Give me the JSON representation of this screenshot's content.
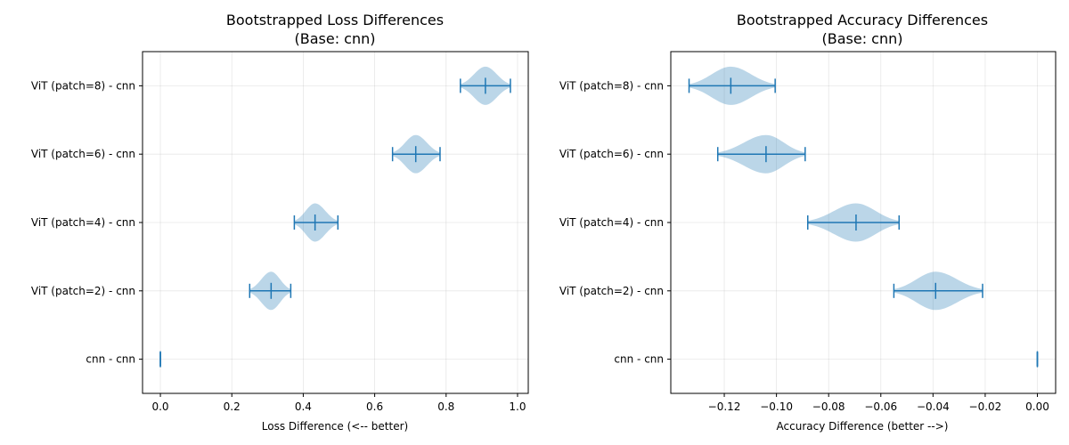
{
  "chart_data": [
    {
      "type": "violin",
      "title": "Bootstrapped Loss Differences",
      "subtitle": "(Base: cnn)",
      "xlabel": "Loss Difference (<-- better)",
      "ylabel": "",
      "xlim": [
        -0.05,
        1.03
      ],
      "xticks": [
        0.0,
        0.2,
        0.4,
        0.6,
        0.8,
        1.0
      ],
      "xtick_labels": [
        "0.0",
        "0.2",
        "0.4",
        "0.6",
        "0.8",
        "1.0"
      ],
      "grid": true,
      "color": "#1f77b4",
      "categories": [
        "cnn - cnn",
        "ViT (patch=2) - cnn",
        "ViT (patch=4) - cnn",
        "ViT (patch=6) - cnn",
        "ViT (patch=8) - cnn"
      ],
      "distributions": [
        {
          "category": "cnn - cnn",
          "min": 0.0,
          "median": 0.0,
          "max": 0.0
        },
        {
          "category": "ViT (patch=2) - cnn",
          "min": 0.25,
          "median": 0.31,
          "max": 0.365
        },
        {
          "category": "ViT (patch=4) - cnn",
          "min": 0.375,
          "median": 0.433,
          "max": 0.497
        },
        {
          "category": "ViT (patch=6) - cnn",
          "min": 0.65,
          "median": 0.715,
          "max": 0.783
        },
        {
          "category": "ViT (patch=8) - cnn",
          "min": 0.84,
          "median": 0.91,
          "max": 0.98
        }
      ]
    },
    {
      "type": "violin",
      "title": "Bootstrapped Accuracy Differences",
      "subtitle": "(Base: cnn)",
      "xlabel": "Accuracy Difference (better -->)",
      "ylabel": "",
      "xlim": [
        -0.1405,
        0.007
      ],
      "xticks": [
        -0.12,
        -0.1,
        -0.08,
        -0.06,
        -0.04,
        -0.02,
        0.0
      ],
      "xtick_labels": [
        "−0.12",
        "−0.10",
        "−0.08",
        "−0.06",
        "−0.04",
        "−0.02",
        "0.00"
      ],
      "grid": true,
      "color": "#1f77b4",
      "categories": [
        "cnn - cnn",
        "ViT (patch=2) - cnn",
        "ViT (patch=4) - cnn",
        "ViT (patch=6) - cnn",
        "ViT (patch=8) - cnn"
      ],
      "distributions": [
        {
          "category": "cnn - cnn",
          "min": 0.0,
          "median": 0.0,
          "max": 0.0
        },
        {
          "category": "ViT (patch=2) - cnn",
          "min": -0.055,
          "median": -0.039,
          "max": -0.021
        },
        {
          "category": "ViT (patch=4) - cnn",
          "min": -0.088,
          "median": -0.0695,
          "max": -0.053
        },
        {
          "category": "ViT (patch=6) - cnn",
          "min": -0.1225,
          "median": -0.104,
          "max": -0.089
        },
        {
          "category": "ViT (patch=8) - cnn",
          "min": -0.1335,
          "median": -0.1175,
          "max": -0.1005
        }
      ]
    }
  ]
}
